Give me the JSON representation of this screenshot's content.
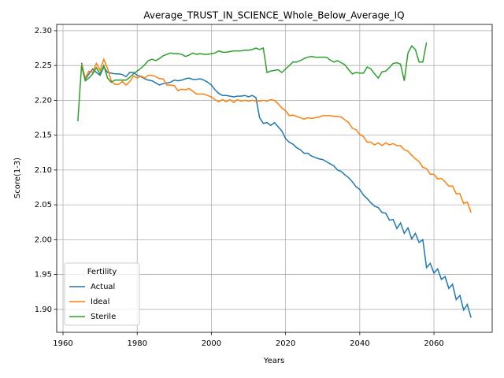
{
  "chart_data": {
    "type": "line",
    "title": "Average_TRUST_IN_SCIENCE_Whole_Below_Average_IQ",
    "xlabel": "Years",
    "ylabel": "Score(1-3)",
    "legend_title": "Fertility",
    "legend": "lower left",
    "grid": true,
    "xlim": [
      1958.3,
      2075.7
    ],
    "xticks": [
      1960,
      1980,
      2000,
      2020,
      2040,
      2060
    ],
    "ylim": [
      1.867,
      2.309
    ],
    "yticks": [
      {
        "value": 1.9,
        "label": "1.90"
      },
      {
        "value": 1.95,
        "label": "1.95"
      },
      {
        "value": 2.0,
        "label": "2.00"
      },
      {
        "value": 2.05,
        "label": "2.05"
      },
      {
        "value": 2.1,
        "label": "2.10"
      },
      {
        "value": 2.15,
        "label": "2.15"
      },
      {
        "value": 2.2,
        "label": "2.20"
      },
      {
        "value": 2.25,
        "label": "2.25"
      },
      {
        "value": 2.3,
        "label": "2.30"
      }
    ],
    "x": [
      1964,
      1965,
      1966,
      1967,
      1968,
      1969,
      1970,
      1971,
      1972,
      1973,
      1974,
      1975,
      1976,
      1977,
      1978,
      1979,
      1980,
      1981,
      1982,
      1983,
      1984,
      1985,
      1986,
      1987,
      1988,
      1989,
      1990,
      1991,
      1992,
      1993,
      1994,
      1995,
      1996,
      1997,
      1998,
      1999,
      2000,
      2001,
      2002,
      2003,
      2004,
      2005,
      2006,
      2007,
      2008,
      2009,
      2010,
      2011,
      2012,
      2013,
      2014,
      2015,
      2016,
      2017,
      2018,
      2019,
      2020,
      2021,
      2022,
      2023,
      2024,
      2025,
      2026,
      2027,
      2028,
      2029,
      2030,
      2031,
      2032,
      2033,
      2034,
      2035,
      2036,
      2037,
      2038,
      2039,
      2040,
      2041,
      2042,
      2043,
      2044,
      2045,
      2046,
      2047,
      2048,
      2049,
      2050,
      2051,
      2052,
      2053,
      2054,
      2055,
      2056,
      2057,
      2058,
      2059,
      2060,
      2061,
      2062,
      2063,
      2064,
      2065,
      2066,
      2067,
      2068,
      2069,
      2070
    ],
    "series": [
      {
        "name": "Actual",
        "color": "#1f77b4",
        "values": [
          null,
          2.254,
          2.23,
          2.238,
          2.245,
          2.24,
          2.236,
          2.248,
          2.24,
          2.239,
          2.238,
          2.238,
          2.237,
          2.234,
          2.24,
          2.24,
          2.236,
          2.234,
          2.231,
          2.229,
          2.228,
          2.225,
          2.222,
          2.224,
          2.225,
          2.226,
          2.229,
          2.228,
          2.229,
          2.231,
          2.232,
          2.23,
          2.23,
          2.231,
          2.229,
          2.226,
          2.222,
          2.215,
          2.21,
          2.207,
          2.207,
          2.206,
          2.205,
          2.206,
          2.206,
          2.207,
          2.205,
          2.207,
          2.204,
          2.175,
          2.167,
          2.168,
          2.164,
          2.168,
          2.162,
          2.156,
          2.145,
          2.14,
          2.137,
          2.132,
          2.129,
          2.124,
          2.124,
          2.12,
          2.118,
          2.116,
          2.115,
          2.112,
          2.109,
          2.106,
          2.1,
          2.098,
          2.093,
          2.089,
          2.083,
          2.076,
          2.072,
          2.064,
          2.059,
          2.053,
          2.048,
          2.046,
          2.039,
          2.038,
          2.028,
          2.029,
          2.016,
          2.024,
          2.009,
          2.017,
          2.001,
          2.009,
          1.996,
          2.0,
          1.96,
          1.966,
          1.952,
          1.958,
          1.943,
          1.947,
          1.93,
          1.936,
          1.914,
          1.92,
          1.899,
          1.907,
          1.888
        ]
      },
      {
        "name": "Ideal",
        "color": "#ff7f0e",
        "values": [
          null,
          2.252,
          2.232,
          2.242,
          2.24,
          2.253,
          2.243,
          2.259,
          2.246,
          2.228,
          2.223,
          2.223,
          2.227,
          2.222,
          2.227,
          2.235,
          2.232,
          2.235,
          2.232,
          2.236,
          2.236,
          2.234,
          2.231,
          2.231,
          2.222,
          2.222,
          2.221,
          2.214,
          2.216,
          2.215,
          2.217,
          2.213,
          2.209,
          2.209,
          2.209,
          2.207,
          2.205,
          2.201,
          2.198,
          2.201,
          2.198,
          2.201,
          2.197,
          2.201,
          2.199,
          2.2,
          2.199,
          2.2,
          2.199,
          2.199,
          2.2,
          2.199,
          2.201,
          2.2,
          2.195,
          2.189,
          2.185,
          2.178,
          2.179,
          2.177,
          2.175,
          2.173,
          2.175,
          2.174,
          2.175,
          2.176,
          2.178,
          2.178,
          2.178,
          2.177,
          2.177,
          2.176,
          2.172,
          2.168,
          2.16,
          2.158,
          2.151,
          2.148,
          2.14,
          2.14,
          2.136,
          2.139,
          2.135,
          2.139,
          2.136,
          2.138,
          2.135,
          2.135,
          2.129,
          2.127,
          2.121,
          2.116,
          2.112,
          2.104,
          2.102,
          2.094,
          2.094,
          2.087,
          2.088,
          2.083,
          2.077,
          2.077,
          2.066,
          2.066,
          2.052,
          2.054,
          2.039
        ]
      },
      {
        "name": "Sterile",
        "color": "#2ca02c",
        "values": [
          2.17,
          2.25,
          2.228,
          2.232,
          2.238,
          2.247,
          2.238,
          2.25,
          2.232,
          2.226,
          2.229,
          2.229,
          2.229,
          2.229,
          2.233,
          2.238,
          2.242,
          2.246,
          2.251,
          2.257,
          2.259,
          2.257,
          2.26,
          2.264,
          2.266,
          2.268,
          2.267,
          2.267,
          2.266,
          2.263,
          2.265,
          2.268,
          2.266,
          2.267,
          2.266,
          2.266,
          2.267,
          2.268,
          2.271,
          2.269,
          2.269,
          2.27,
          2.271,
          2.271,
          2.271,
          2.272,
          2.272,
          2.273,
          2.275,
          2.273,
          2.275,
          2.24,
          2.242,
          2.243,
          2.244,
          2.24,
          2.245,
          2.25,
          2.255,
          2.255,
          2.257,
          2.26,
          2.262,
          2.263,
          2.262,
          2.262,
          2.262,
          2.262,
          2.258,
          2.255,
          2.257,
          2.254,
          2.251,
          2.244,
          2.238,
          2.24,
          2.239,
          2.239,
          2.248,
          2.245,
          2.238,
          2.232,
          2.241,
          2.242,
          2.247,
          2.253,
          2.254,
          2.252,
          2.228,
          2.268,
          2.278,
          2.273,
          2.255,
          2.255,
          2.283,
          null,
          null,
          null,
          null,
          null,
          null,
          null,
          null,
          null,
          null,
          null,
          null
        ]
      }
    ]
  }
}
